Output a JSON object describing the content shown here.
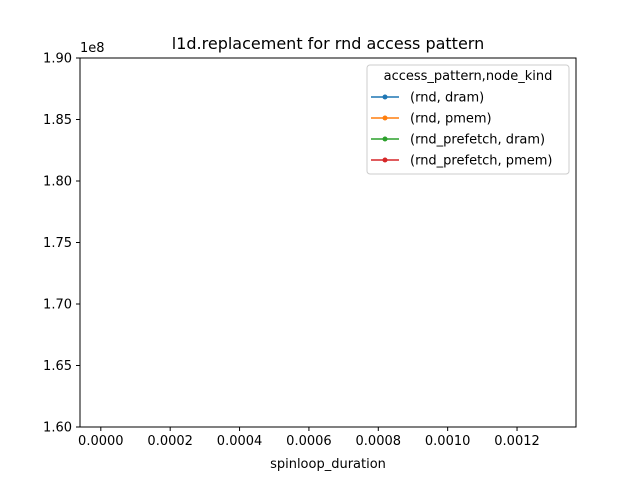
{
  "chart_data": {
    "type": "line",
    "title": "l1d.replacement for rnd access pattern",
    "xlabel": "spinloop_duration",
    "ylabel": "",
    "y_offset_label": "1e8",
    "xlim": [
      -6e-05,
      0.00137
    ],
    "ylim": [
      1.6,
      1.9
    ],
    "x_ticks": [
      0.0,
      0.0002,
      0.0004,
      0.0006,
      0.0008,
      0.001,
      0.0012
    ],
    "x_tick_labels": [
      "0.0000",
      "0.0002",
      "0.0004",
      "0.0006",
      "0.0008",
      "0.0010",
      "0.0012"
    ],
    "y_ticks": [
      1.6,
      1.65,
      1.7,
      1.75,
      1.8,
      1.85,
      1.9
    ],
    "y_tick_labels": [
      "1.60",
      "1.65",
      "1.70",
      "1.75",
      "1.80",
      "1.85",
      "1.90"
    ],
    "grid": false,
    "legend_title": "access_pattern,node_kind",
    "legend_position": "top-right",
    "series": [
      {
        "name": "(rnd, dram)",
        "color": "#1f77b4",
        "x": [],
        "values": []
      },
      {
        "name": "(rnd, pmem)",
        "color": "#ff7f0e",
        "x": [],
        "values": []
      },
      {
        "name": "(rnd_prefetch, dram)",
        "color": "#2ca02c",
        "x": [],
        "values": []
      },
      {
        "name": "(rnd_prefetch, pmem)",
        "color": "#d62728",
        "x": [],
        "values": []
      }
    ]
  }
}
